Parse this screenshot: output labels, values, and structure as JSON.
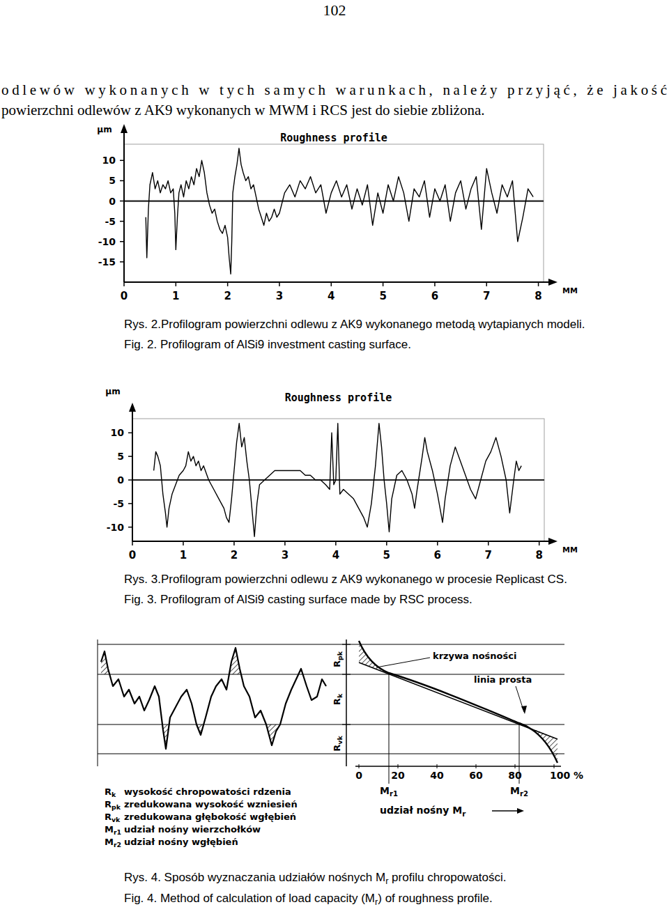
{
  "page_number": "102",
  "paragraph": [
    "odlewów wykonanych w tych samych warunkach, należy przyjąć, że jakość",
    "powierzchni odlewów z AK9 wykonanych w MWM i RCS jest do siebie zbliżona."
  ],
  "chart_data": [
    {
      "type": "line",
      "title": "Roughness profile",
      "y_label": "μm",
      "x_label": "MM",
      "color": "#000000",
      "grid": false,
      "xlim": [
        0,
        8.1
      ],
      "ylim": [
        -20,
        14
      ],
      "xticks": [
        0,
        1,
        2,
        3,
        4,
        5,
        6,
        7,
        8
      ],
      "yticks": [
        -15,
        -10,
        -5,
        0,
        5,
        10
      ],
      "x": [
        0.42,
        0.44,
        0.47,
        0.5,
        0.55,
        0.6,
        0.65,
        0.7,
        0.75,
        0.8,
        0.85,
        0.9,
        0.95,
        0.98,
        1.0,
        1.03,
        1.06,
        1.1,
        1.15,
        1.2,
        1.25,
        1.3,
        1.35,
        1.4,
        1.45,
        1.5,
        1.55,
        1.6,
        1.65,
        1.7,
        1.75,
        1.8,
        1.85,
        1.9,
        1.95,
        2.0,
        2.03,
        2.06,
        2.08,
        2.1,
        2.14,
        2.18,
        2.22,
        2.26,
        2.3,
        2.35,
        2.4,
        2.45,
        2.5,
        2.55,
        2.6,
        2.65,
        2.7,
        2.75,
        2.8,
        2.85,
        2.9,
        2.95,
        3.0,
        3.1,
        3.2,
        3.3,
        3.4,
        3.5,
        3.6,
        3.7,
        3.8,
        3.9,
        4.0,
        4.1,
        4.2,
        4.3,
        4.4,
        4.5,
        4.6,
        4.7,
        4.8,
        4.9,
        5.0,
        5.1,
        5.2,
        5.3,
        5.4,
        5.5,
        5.6,
        5.7,
        5.8,
        5.9,
        6.0,
        6.1,
        6.2,
        6.3,
        6.4,
        6.5,
        6.6,
        6.7,
        6.8,
        6.9,
        7.0,
        7.1,
        7.2,
        7.3,
        7.4,
        7.5,
        7.6,
        7.7,
        7.8,
        7.9
      ],
      "values": [
        -4,
        -14,
        -2,
        4,
        7,
        3,
        5,
        2,
        4,
        3,
        5,
        2,
        3,
        -3,
        -12,
        -4,
        2,
        4,
        1,
        5,
        3,
        6,
        4,
        8,
        6,
        10,
        7,
        2,
        -1,
        -3,
        -2,
        -5,
        -7,
        -8,
        -6,
        -9,
        -14,
        -18,
        -10,
        2,
        6,
        9,
        13,
        9,
        7,
        5,
        6,
        3,
        4,
        1,
        -2,
        -4,
        -6,
        -3,
        -5,
        -4,
        -2,
        -4,
        -3,
        2,
        4,
        1,
        5,
        3,
        6,
        2,
        4,
        -3,
        2,
        5,
        1,
        4,
        -2,
        3,
        -1,
        4,
        -6,
        2,
        -3,
        4,
        0,
        6,
        2,
        -5,
        3,
        1,
        5,
        -4,
        3,
        0,
        4,
        -5,
        2,
        5,
        -2,
        3,
        6,
        -7,
        8,
        2,
        -3,
        4,
        1,
        5,
        -10,
        -4,
        3,
        1
      ]
    },
    {
      "type": "line",
      "title": "Roughness profile",
      "y_label": "μm",
      "x_label": "MM",
      "color": "#000000",
      "grid": false,
      "xlim": [
        0,
        8.1
      ],
      "ylim": [
        -13,
        13
      ],
      "xticks": [
        0,
        1,
        2,
        3,
        4,
        5,
        6,
        7,
        8
      ],
      "yticks": [
        -10,
        -5,
        0,
        5,
        10
      ],
      "x": [
        0.42,
        0.46,
        0.5,
        0.55,
        0.6,
        0.65,
        0.68,
        0.72,
        0.78,
        0.85,
        0.92,
        1.0,
        1.05,
        1.1,
        1.15,
        1.2,
        1.25,
        1.3,
        1.35,
        1.4,
        1.5,
        1.6,
        1.7,
        1.8,
        1.85,
        1.9,
        1.95,
        2.0,
        2.05,
        2.1,
        2.15,
        2.2,
        2.25,
        2.3,
        2.35,
        2.4,
        2.45,
        2.5,
        2.6,
        2.7,
        2.8,
        2.9,
        3.0,
        3.1,
        3.2,
        3.3,
        3.4,
        3.5,
        3.6,
        3.7,
        3.8,
        3.88,
        3.92,
        3.96,
        4.0,
        4.04,
        4.08,
        4.15,
        4.25,
        4.35,
        4.45,
        4.55,
        4.62,
        4.7,
        4.78,
        4.85,
        4.9,
        4.95,
        5.0,
        5.05,
        5.1,
        5.2,
        5.3,
        5.4,
        5.5,
        5.55,
        5.6,
        5.7,
        5.75,
        5.8,
        5.9,
        6.0,
        6.1,
        6.15,
        6.25,
        6.35,
        6.45,
        6.55,
        6.65,
        6.75,
        6.85,
        6.95,
        7.05,
        7.15,
        7.25,
        7.35,
        7.42,
        7.5,
        7.55,
        7.6,
        7.65
      ],
      "values": [
        2,
        6,
        5,
        3,
        -3,
        -7,
        -10,
        -6,
        -3,
        -1,
        1,
        2,
        3,
        6,
        4,
        5,
        3,
        4,
        2,
        3,
        0,
        -2,
        -4,
        -6,
        -8,
        -9,
        -4,
        2,
        8,
        12,
        7,
        9,
        4,
        0,
        -6,
        -12,
        -5,
        -1,
        0,
        1,
        2,
        2,
        2,
        2,
        2,
        2,
        1,
        1,
        0,
        0,
        -1,
        -2,
        10,
        -1,
        0,
        12,
        -3,
        -2,
        -3,
        -4,
        -6,
        -8,
        -10,
        -5,
        3,
        12,
        7,
        0,
        -5,
        -11,
        -4,
        1,
        2,
        0,
        -3,
        -6,
        -2,
        5,
        9,
        6,
        2,
        -3,
        -9,
        -4,
        3,
        7,
        4,
        1,
        -2,
        -4,
        0,
        4,
        6,
        9,
        5,
        0,
        -7,
        0,
        4,
        2,
        3
      ]
    }
  ],
  "captions": [
    {
      "pl": [
        {
          "text": "Rys. 2.Profilogram powierzchni odlewu z AK9 wykonanego metodą wytapianych modeli."
        }
      ],
      "en": [
        {
          "text": "Fig. 2. Profilogram of AlSi9 investment casting surface."
        }
      ]
    },
    {
      "pl": [
        {
          "text": "Rys. 3.Profilogram powierzchni odlewu z AK9 wykonanego w procesie Replicast CS."
        }
      ],
      "en": [
        {
          "text": "Fig. 3. Profilogram of AlSi9 casting surface made by RSC process."
        }
      ]
    },
    {
      "pl": [
        {
          "text": "Rys. 4. Sposób wyznaczania udziałów nośnych M"
        },
        {
          "text": "r",
          "sub": true
        },
        {
          "text": " profilu chropowatości."
        }
      ],
      "en": [
        {
          "text": "Fig. 4. Method of calculation of load capacity (M"
        },
        {
          "text": "r",
          "sub": true
        },
        {
          "text": ") of roughness profile."
        }
      ]
    }
  ],
  "diagram": {
    "curve_label": "krzywa nośności",
    "line_label": "linia prosta",
    "heights": [
      {
        "symbol": "R",
        "sub": "pk"
      },
      {
        "symbol": "R",
        "sub": "k"
      },
      {
        "symbol": "R",
        "sub": "vk"
      }
    ],
    "ticks": [
      "0",
      "20",
      "40",
      "60",
      "80",
      "100 %"
    ],
    "markers": [
      {
        "symbol": "M",
        "sub": "r1"
      },
      {
        "symbol": "M",
        "sub": "r2"
      }
    ],
    "axis_label": [
      {
        "text": "udział nośny M"
      },
      {
        "text": "r",
        "sub": true
      }
    ],
    "legend": [
      {
        "symbol": "R",
        "sub": "k",
        "text": "wysokość chropowatości rdzenia"
      },
      {
        "symbol": "R",
        "sub": "pk",
        "text": "zredukowana wysokość wzniesień"
      },
      {
        "symbol": "R",
        "sub": "vk",
        "text": "zredukowana głębokość wgłębień"
      },
      {
        "symbol": "M",
        "sub": "r1",
        "text": "udział nośny wierzchołków"
      },
      {
        "symbol": "M",
        "sub": "r2",
        "text": "udział nośny wgłębień"
      }
    ]
  }
}
